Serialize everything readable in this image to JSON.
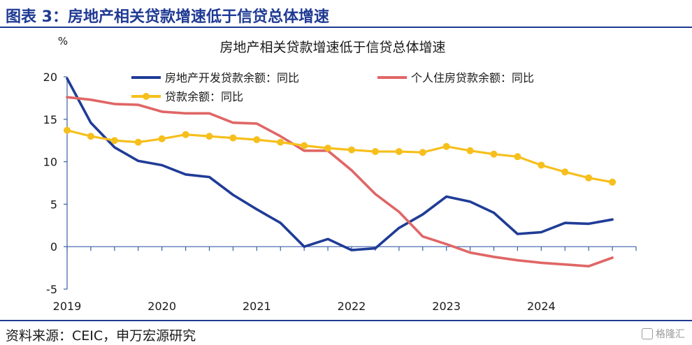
{
  "header": {
    "title": "图表 3：房地产相关贷款增速低于信贷总体增速"
  },
  "footer": {
    "source": "资料来源：CEIC，申万宏源研究",
    "watermark": "格隆汇"
  },
  "colors": {
    "brand": "#1f3a93",
    "series1": "#1f3c96",
    "series2": "#e06666",
    "series3": "#f6bf1c",
    "axis": "#3a5fa8"
  },
  "chart_data": {
    "type": "line",
    "title": "房地产相关贷款增速低于信贷总体增速",
    "ylabel": "%",
    "ylim": [
      -5,
      20
    ],
    "yticks": [
      "-5",
      "0",
      "5",
      "10",
      "15",
      "20"
    ],
    "xlim": [
      2019.0,
      2025.0
    ],
    "xticks": [
      "2019",
      "2020",
      "2021",
      "2022",
      "2023",
      "2024"
    ],
    "grid": false,
    "legend_position": "top",
    "series": [
      {
        "name": "房地产开发贷款余额：同比",
        "marker": "none",
        "x": [
          2019.0,
          2019.25,
          2019.5,
          2019.75,
          2020.0,
          2020.25,
          2020.5,
          2020.75,
          2021.0,
          2021.25,
          2021.5,
          2021.75,
          2022.0,
          2022.25,
          2022.5,
          2022.75,
          2023.0,
          2023.25,
          2023.5,
          2023.75,
          2024.0,
          2024.25,
          2024.5,
          2024.75
        ],
        "values": [
          19.8,
          14.6,
          11.7,
          10.1,
          9.6,
          8.5,
          8.2,
          6.1,
          4.4,
          2.8,
          0.0,
          0.9,
          -0.4,
          -0.2,
          2.2,
          3.8,
          5.9,
          5.3,
          4.0,
          1.5,
          1.7,
          2.8,
          2.7,
          3.2
        ]
      },
      {
        "name": "个人住房贷款余额：同比",
        "marker": "none",
        "x": [
          2019.0,
          2019.25,
          2019.5,
          2019.75,
          2020.0,
          2020.25,
          2020.5,
          2020.75,
          2021.0,
          2021.25,
          2021.5,
          2021.75,
          2022.0,
          2022.25,
          2022.5,
          2022.75,
          2023.0,
          2023.25,
          2023.5,
          2023.75,
          2024.0,
          2024.25,
          2024.5,
          2024.75
        ],
        "values": [
          17.6,
          17.3,
          16.8,
          16.7,
          15.9,
          15.7,
          15.7,
          14.6,
          14.5,
          13.0,
          11.3,
          11.3,
          9.0,
          6.2,
          4.1,
          1.2,
          0.3,
          -0.7,
          -1.2,
          -1.6,
          -1.9,
          -2.1,
          -2.3,
          -1.3
        ]
      },
      {
        "name": "贷款余额：同比",
        "marker": "circle",
        "x": [
          2019.0,
          2019.25,
          2019.5,
          2019.75,
          2020.0,
          2020.25,
          2020.5,
          2020.75,
          2021.0,
          2021.25,
          2021.5,
          2021.75,
          2022.0,
          2022.25,
          2022.5,
          2022.75,
          2023.0,
          2023.25,
          2023.5,
          2023.75,
          2024.0,
          2024.25,
          2024.5,
          2024.75
        ],
        "values": [
          13.7,
          13.0,
          12.5,
          12.3,
          12.7,
          13.2,
          13.0,
          12.8,
          12.6,
          12.3,
          11.9,
          11.6,
          11.4,
          11.2,
          11.2,
          11.1,
          11.8,
          11.3,
          10.9,
          10.6,
          9.6,
          8.8,
          8.1,
          7.6
        ]
      }
    ]
  }
}
